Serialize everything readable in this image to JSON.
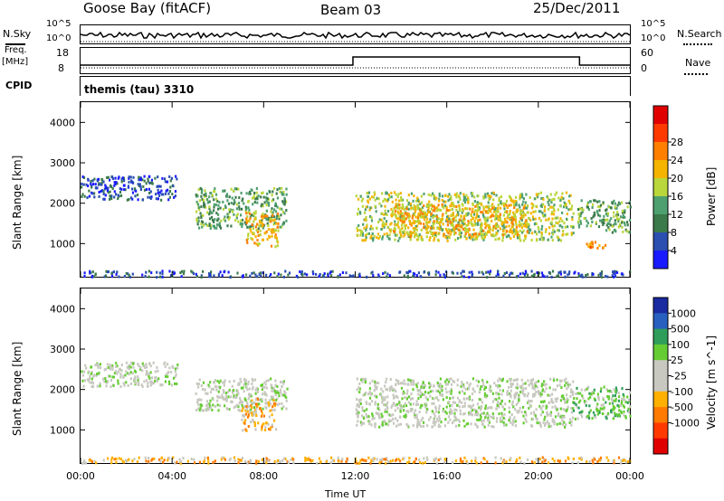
{
  "header": {
    "station": "Goose Bay (fitACF)",
    "beam": "Beam 03",
    "date": "25/Dec/2011"
  },
  "top_strips": {
    "nsky_label": "N.Sky",
    "nsearch_label": "N.Search",
    "noise_ticks_left": [
      "10^5",
      "10^0"
    ],
    "noise_ticks_right": [
      "10^5",
      "10^0"
    ],
    "freq_label": "Freq.",
    "freq_unit": "[MHz]",
    "freq_ticks": [
      "18",
      "8"
    ],
    "nave_ticks": [
      "60",
      "0"
    ],
    "nave_label": "Nave",
    "cpid_label": "CPID",
    "cpid_value": "themis (tau) 3310"
  },
  "colors": {
    "power_scale": [
      "#1a1aff",
      "#2a4fb0",
      "#3b7a4a",
      "#4fa070",
      "#b9d63a",
      "#f4b400",
      "#ff7f00",
      "#ff3a00",
      "#e00000"
    ],
    "velocity_scale": [
      "#1a2aa0",
      "#2860c0",
      "#2e9e5a",
      "#66cc33",
      "#c8c8c0",
      "#c8c8c0",
      "#ffb000",
      "#ff7a00",
      "#ff3a00",
      "#e00000"
    ]
  },
  "chart_data": [
    {
      "type": "heatmap",
      "title": "Power",
      "xlabel": "Time UT",
      "ylabel": "Slant Range [km]",
      "x_ticks": [
        "00:00",
        "04:00",
        "08:00",
        "12:00",
        "16:00",
        "20:00",
        "00:00"
      ],
      "xlim_hours": [
        0,
        24
      ],
      "y_ticks": [
        1000,
        2000,
        3000,
        4000
      ],
      "ylim": [
        180,
        4500
      ],
      "colorbar_label": "Power [dB]",
      "colorbar_ticks": [
        "4",
        "8",
        "12",
        "16",
        "20",
        "24",
        "28"
      ],
      "regions": [
        {
          "t0": 0.0,
          "t1": 4.2,
          "r0": 2100,
          "r1": 2700,
          "level": 1
        },
        {
          "t0": 5.0,
          "t1": 9.0,
          "r0": 1400,
          "r1": 2400,
          "level": 3
        },
        {
          "t0": 7.2,
          "t1": 8.6,
          "r0": 950,
          "r1": 1800,
          "level": 5
        },
        {
          "t0": 12.0,
          "t1": 21.5,
          "r0": 1100,
          "r1": 2300,
          "level": 4
        },
        {
          "t0": 13.5,
          "t1": 19.5,
          "r0": 1200,
          "r1": 2000,
          "level": 5
        },
        {
          "t0": 21.7,
          "t1": 24.0,
          "r0": 1300,
          "r1": 2100,
          "level": 3
        },
        {
          "t0": 22.0,
          "t1": 23.0,
          "r0": 900,
          "r1": 1100,
          "level": 6
        },
        {
          "t0": 0.0,
          "t1": 24.0,
          "r0": 200,
          "r1": 350,
          "level": 1
        }
      ]
    },
    {
      "type": "heatmap",
      "title": "Velocity",
      "xlabel": "Time UT",
      "ylabel": "Slant Range [km]",
      "x_ticks": [
        "00:00",
        "04:00",
        "08:00",
        "12:00",
        "16:00",
        "20:00",
        "00:00"
      ],
      "xlim_hours": [
        0,
        24
      ],
      "y_ticks": [
        1000,
        2000,
        3000,
        4000
      ],
      "ylim": [
        180,
        4500
      ],
      "colorbar_label": "Velocity [m s^-1]",
      "colorbar_ticks": [
        "1000",
        "500",
        "100",
        "25",
        "-25",
        "-100",
        "-500",
        "-1000"
      ],
      "regions": [
        {
          "t0": 0.0,
          "t1": 4.2,
          "r0": 2100,
          "r1": 2700,
          "level": 4
        },
        {
          "t0": 5.0,
          "t1": 9.0,
          "r0": 1500,
          "r1": 2300,
          "level": 4
        },
        {
          "t0": 7.0,
          "t1": 8.5,
          "r0": 1000,
          "r1": 1800,
          "level": 6
        },
        {
          "t0": 12.0,
          "t1": 21.5,
          "r0": 1100,
          "r1": 2300,
          "level": 4
        },
        {
          "t0": 21.5,
          "t1": 24.0,
          "r0": 1300,
          "r1": 2100,
          "level": 3
        },
        {
          "t0": 0.0,
          "t1": 24.0,
          "r0": 200,
          "r1": 350,
          "level": 6
        }
      ]
    }
  ]
}
